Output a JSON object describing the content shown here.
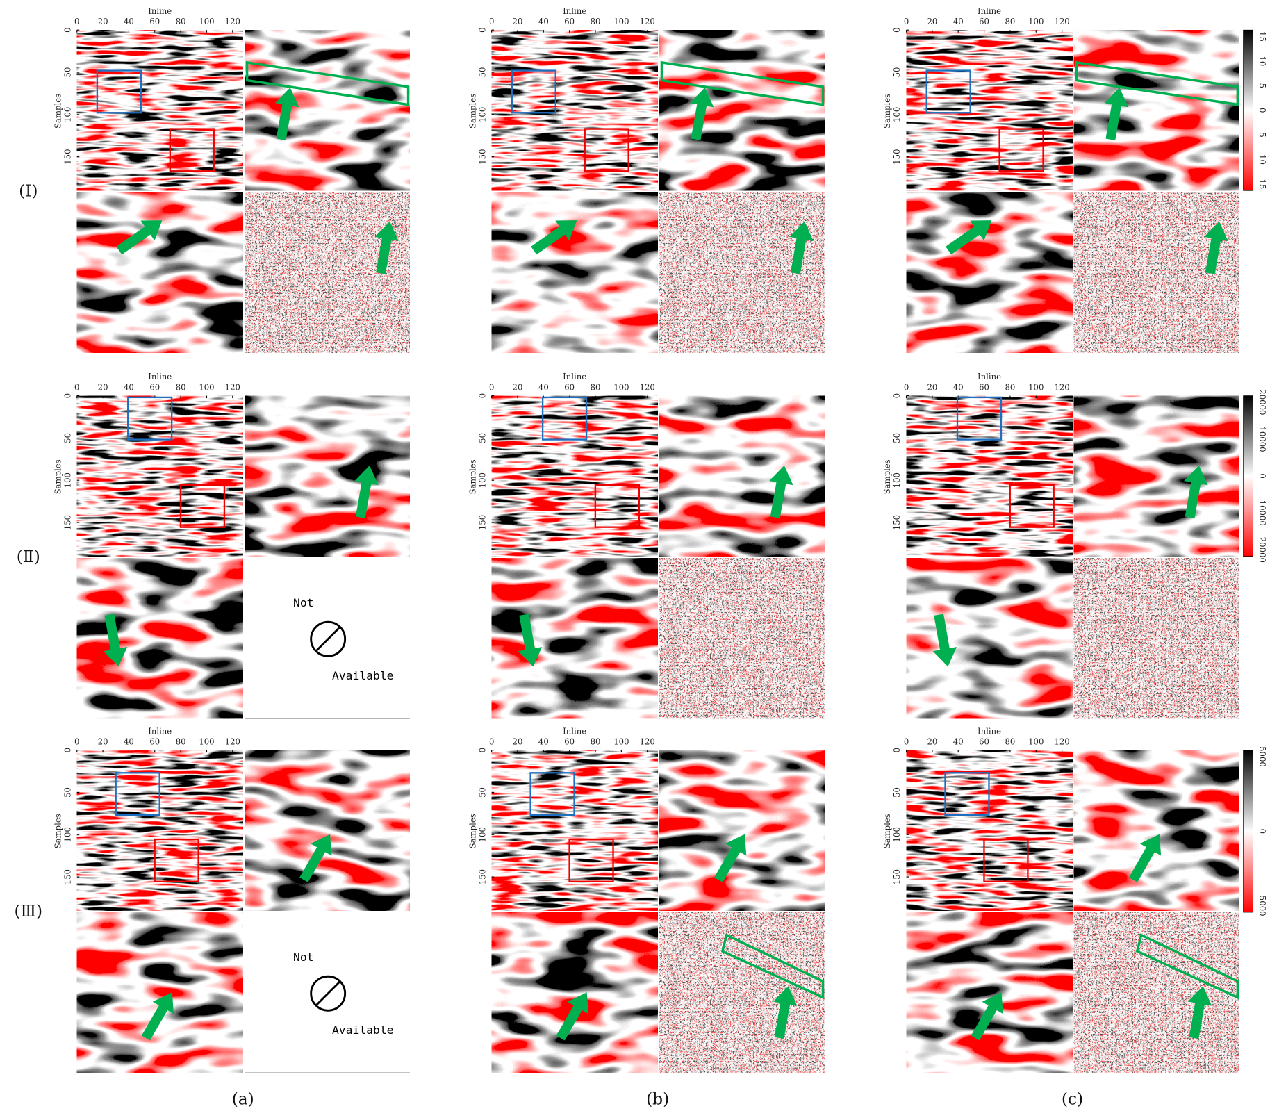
{
  "row_labels": [
    "(Ⅰ)",
    "(Ⅱ)",
    "(Ⅲ)"
  ],
  "column_labels": [
    "(a)",
    "(b)",
    "(c)"
  ],
  "axes": {
    "x_title": "Inline",
    "y_title": "Samples",
    "x_ticks": [
      0,
      20,
      40,
      60,
      80,
      100,
      120
    ],
    "y_ticks": [
      0,
      50,
      100,
      150
    ]
  },
  "colorbars": [
    {
      "ticks": [
        15,
        10,
        5,
        0,
        5,
        10,
        15
      ]
    },
    {
      "ticks": [
        20000,
        10000,
        0,
        10000,
        20000
      ]
    },
    {
      "ticks": [
        5000,
        0,
        5000
      ]
    }
  ],
  "not_available": {
    "top": "Not",
    "bottom": "Available"
  }
}
